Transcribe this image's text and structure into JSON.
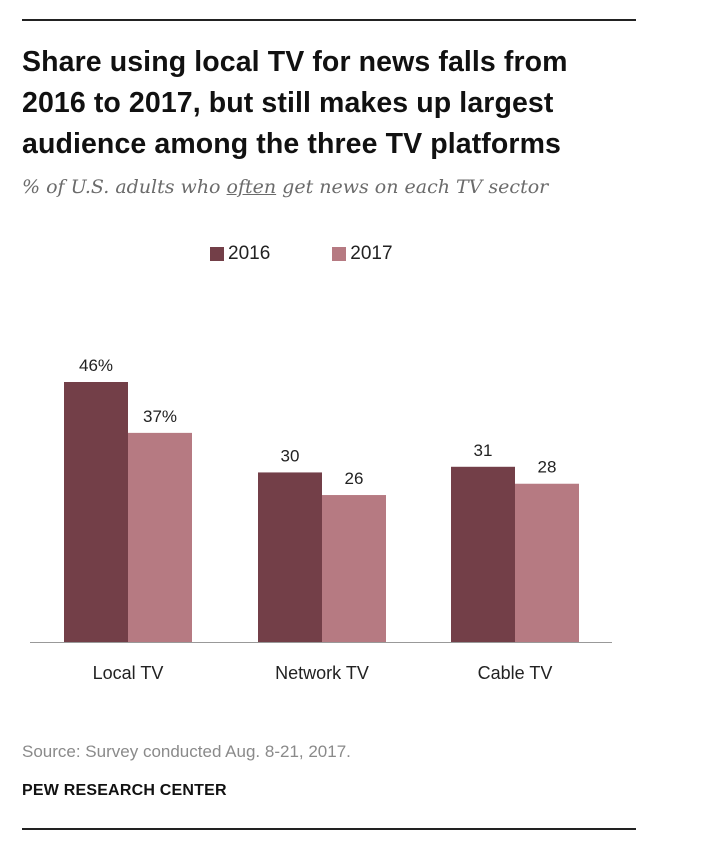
{
  "header": {
    "title_line1": "Share using local TV for news falls from",
    "title_line2": "2016 to 2017, but still makes up largest",
    "title_line3": "audience among the three TV platforms",
    "subtitle_before": "% of U.S. adults who ",
    "subtitle_emphasis": "often",
    "subtitle_after": " get news on each TV sector"
  },
  "legend": {
    "items": [
      {
        "label": "2016",
        "color": "#733f48"
      },
      {
        "label": "2017",
        "color": "#b67a82"
      }
    ]
  },
  "chart_data": {
    "type": "bar",
    "title": "Share using local TV for news falls from 2016 to 2017, but still makes up largest audience among the three TV platforms",
    "categories": [
      "Local TV",
      "Network TV",
      "Cable TV"
    ],
    "series": [
      {
        "name": "2016",
        "values": [
          46,
          30,
          31
        ],
        "labels": [
          "46%",
          "30",
          "31"
        ],
        "color": "#733f48"
      },
      {
        "name": "2017",
        "values": [
          37,
          26,
          28
        ],
        "labels": [
          "37%",
          "26",
          "28"
        ],
        "color": "#b67a82"
      }
    ],
    "xlabel": "",
    "ylabel": "",
    "ylim": [
      0,
      46
    ],
    "grid": false,
    "legend_position": "top"
  },
  "footer": {
    "source": "Source: Survey conducted Aug. 8-21, 2017.",
    "org": "PEW RESEARCH CENTER"
  }
}
